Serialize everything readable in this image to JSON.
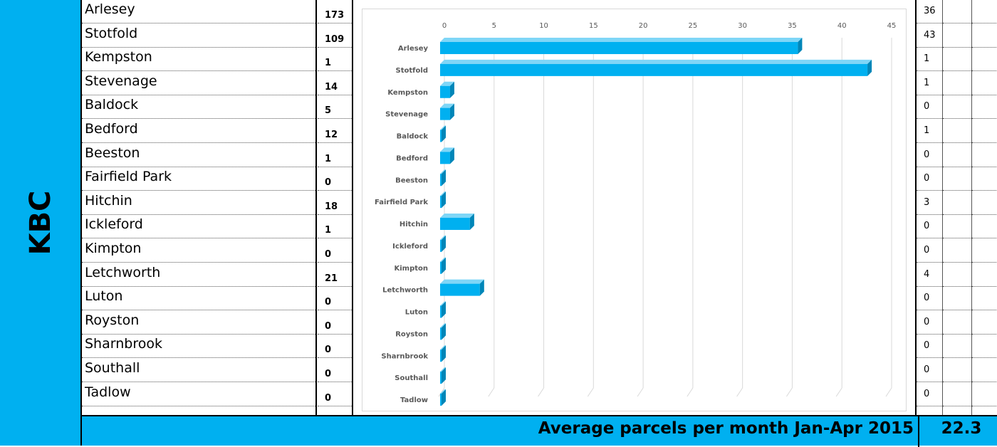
{
  "group_label": "KBC",
  "towns": [
    "Arlesey",
    "Stotfold",
    "Kempston",
    "Stevenage",
    "Baldock",
    "Bedford",
    "Beeston",
    "Fairfield Park",
    "Hitchin",
    "Ickleford",
    "Kimpton",
    "Letchworth",
    "Luton",
    "Royston",
    "Sharnbrook",
    "Southall",
    "Tadlow"
  ],
  "counts": [
    "173",
    "109",
    "1",
    "14",
    "5",
    "12",
    "1",
    "0",
    "18",
    "1",
    "0",
    "21",
    "0",
    "0",
    "0",
    "0",
    "0"
  ],
  "right_values": [
    "36",
    "43",
    "1",
    "1",
    "0",
    "1",
    "0",
    "0",
    "3",
    "0",
    "0",
    "4",
    "0",
    "0",
    "0",
    "0",
    "0"
  ],
  "footer": {
    "label": "Average parcels per month Jan-Apr 2015",
    "value": "22.3"
  },
  "colors": {
    "accent": "#00b0f0",
    "bar": "#00b0f0"
  },
  "chart_data": {
    "type": "bar",
    "orientation": "horizontal",
    "categories": [
      "Arlesey",
      "Stotfold",
      "Kempston",
      "Stevenage",
      "Baldock",
      "Bedford",
      "Beeston",
      "Fairfield Park",
      "Hitchin",
      "Ickleford",
      "Kimpton",
      "Letchworth",
      "Luton",
      "Royston",
      "Sharnbrook",
      "Southall",
      "Tadlow"
    ],
    "values": [
      36,
      43,
      1,
      1,
      0,
      1,
      0,
      0,
      3,
      0,
      0,
      4,
      0,
      0,
      0,
      0,
      0
    ],
    "x_ticks": [
      "0",
      "5",
      "10",
      "15",
      "20",
      "25",
      "30",
      "35",
      "40",
      "45"
    ],
    "xlim": [
      0,
      45
    ],
    "grid": true,
    "legend": "none"
  }
}
